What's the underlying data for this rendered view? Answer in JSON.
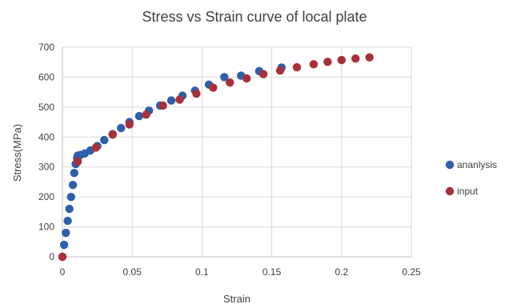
{
  "chart_data": {
    "type": "scatter",
    "title": "Stress vs Strain curve of local plate",
    "xlabel": "Strain",
    "ylabel": "Stress(MPa)",
    "xlim": [
      0,
      0.25
    ],
    "ylim": [
      0,
      700
    ],
    "xticks": [
      "0",
      "0.05",
      "0.1",
      "0.15",
      "0.2",
      "0.25"
    ],
    "yticks": [
      "0",
      "100",
      "200",
      "300",
      "400",
      "500",
      "600",
      "700"
    ],
    "grid": true,
    "legend_position": "right",
    "series": [
      {
        "name": "ananlysis",
        "color": "#2e5fa8",
        "x": [
          0,
          0.0012,
          0.0025,
          0.0038,
          0.005,
          0.0062,
          0.0075,
          0.0085,
          0.0095,
          0.0105,
          0.011,
          0.013,
          0.016,
          0.02,
          0.025,
          0.03,
          0.036,
          0.042,
          0.048,
          0.055,
          0.062,
          0.07,
          0.078,
          0.086,
          0.095,
          0.105,
          0.116,
          0.128,
          0.141,
          0.157
        ],
        "y": [
          0,
          40,
          80,
          120,
          160,
          200,
          240,
          280,
          310,
          330,
          338,
          340,
          345,
          355,
          370,
          390,
          410,
          430,
          450,
          470,
          488,
          505,
          522,
          538,
          555,
          575,
          600,
          605,
          620,
          632
        ]
      },
      {
        "name": "input",
        "color": "#a9303a",
        "x": [
          0,
          0.011,
          0.024,
          0.036,
          0.048,
          0.06,
          0.072,
          0.084,
          0.096,
          0.108,
          0.12,
          0.132,
          0.144,
          0.156,
          0.168,
          0.18,
          0.19,
          0.2,
          0.21,
          0.22
        ],
        "y": [
          0,
          318,
          365,
          408,
          442,
          475,
          505,
          525,
          545,
          565,
          582,
          596,
          610,
          622,
          633,
          643,
          651,
          657,
          662,
          666
        ]
      }
    ]
  }
}
